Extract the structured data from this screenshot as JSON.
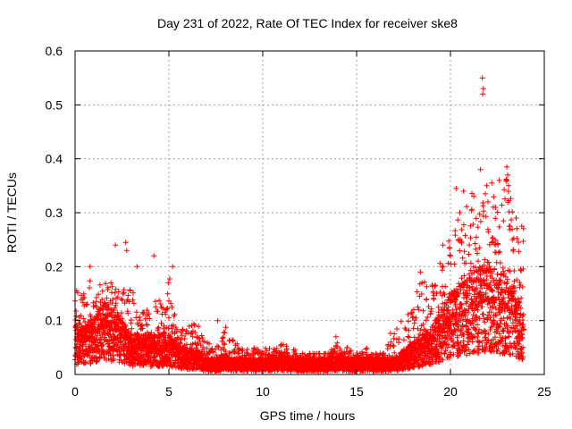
{
  "chart_data": {
    "type": "scatter",
    "title": "Day 231 of 2022, Rate Of TEC Index for receiver ske8",
    "xlabel": "GPS time / hours",
    "ylabel": "ROTI / TECUs",
    "xlim": [
      0,
      25
    ],
    "ylim": [
      0,
      0.6
    ],
    "xticks": [
      "0",
      "5",
      "10",
      "15",
      "20",
      "25"
    ],
    "yticks": [
      "0",
      "0.1",
      "0.2",
      "0.3",
      "0.4",
      "0.5",
      "0.6"
    ],
    "grid": true,
    "marker": "plus",
    "color": "#ff0000",
    "profile": {
      "hours": [
        0.0,
        0.5,
        1.0,
        1.5,
        2.0,
        2.5,
        3.0,
        3.5,
        4.0,
        4.5,
        5.0,
        5.5,
        6.0,
        6.5,
        7.0,
        7.5,
        8.0,
        8.5,
        9.0,
        9.5,
        10.0,
        10.5,
        11.0,
        11.5,
        12.0,
        12.5,
        13.0,
        13.5,
        14.0,
        14.5,
        15.0,
        15.5,
        16.0,
        16.5,
        17.0,
        17.5,
        18.0,
        18.5,
        19.0,
        19.5,
        20.0,
        20.5,
        21.0,
        21.5,
        22.0,
        22.5,
        23.0,
        23.5,
        23.9
      ],
      "typical": [
        0.06,
        0.06,
        0.07,
        0.09,
        0.08,
        0.07,
        0.05,
        0.05,
        0.05,
        0.05,
        0.05,
        0.04,
        0.03,
        0.03,
        0.02,
        0.02,
        0.025,
        0.02,
        0.02,
        0.02,
        0.02,
        0.02,
        0.025,
        0.02,
        0.02,
        0.02,
        0.02,
        0.02,
        0.025,
        0.02,
        0.02,
        0.02,
        0.02,
        0.02,
        0.02,
        0.03,
        0.04,
        0.05,
        0.06,
        0.08,
        0.1,
        0.11,
        0.12,
        0.13,
        0.14,
        0.13,
        0.12,
        0.1,
        0.08
      ],
      "upper": [
        0.16,
        0.15,
        0.19,
        0.17,
        0.17,
        0.16,
        0.16,
        0.12,
        0.12,
        0.15,
        0.19,
        0.08,
        0.09,
        0.1,
        0.06,
        0.05,
        0.1,
        0.06,
        0.05,
        0.05,
        0.05,
        0.05,
        0.06,
        0.05,
        0.04,
        0.04,
        0.04,
        0.04,
        0.06,
        0.05,
        0.04,
        0.05,
        0.04,
        0.04,
        0.11,
        0.1,
        0.14,
        0.18,
        0.17,
        0.22,
        0.26,
        0.3,
        0.32,
        0.38,
        0.35,
        0.32,
        0.38,
        0.29,
        0.28
      ]
    },
    "outliers": [
      [
        0.8,
        0.2
      ],
      [
        2.15,
        0.24
      ],
      [
        2.7,
        0.245
      ],
      [
        2.75,
        0.23
      ],
      [
        4.2,
        0.22
      ],
      [
        3.3,
        0.2
      ],
      [
        5.2,
        0.2
      ],
      [
        7.6,
        0.1
      ],
      [
        13.9,
        0.07
      ],
      [
        18.4,
        0.19
      ],
      [
        20.3,
        0.345
      ],
      [
        20.7,
        0.34
      ],
      [
        20.5,
        0.3
      ],
      [
        21.6,
        0.38
      ],
      [
        21.7,
        0.55
      ],
      [
        21.75,
        0.53
      ],
      [
        21.72,
        0.52
      ],
      [
        22.2,
        0.355
      ],
      [
        22.6,
        0.36
      ],
      [
        23.0,
        0.385
      ],
      [
        23.05,
        0.37
      ],
      [
        23.1,
        0.35
      ],
      [
        23.0,
        0.36
      ],
      [
        23.5,
        0.29
      ],
      [
        23.8,
        0.275
      ],
      [
        19.6,
        0.24
      ],
      [
        20.0,
        0.22
      ],
      [
        22.0,
        0.32
      ],
      [
        22.4,
        0.31
      ],
      [
        23.3,
        0.25
      ]
    ]
  }
}
